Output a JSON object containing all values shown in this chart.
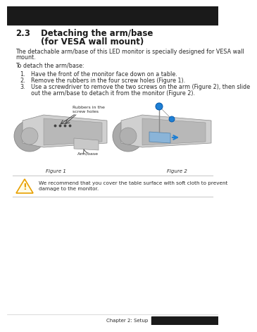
{
  "bg_color": "#ffffff",
  "header_bar_color": "#1a1a1a",
  "section_num": "2.3",
  "section_title_line1": "Detaching the arm/base",
  "section_title_line2": "(for VESA wall mount)",
  "body_text_1a": "The detachable arm/base of this LED monitor is specially designed for VESA wall",
  "body_text_1b": "mount.",
  "body_text_2": "To detach the arm/base:",
  "step1": "Have the front of the monitor face down on a table.",
  "step2": "Remove the rubbers in the four screw holes (Figure 1).",
  "step3a": "Use a screwdriver to remove the two screws on the arm (Figure 2), then slide",
  "step3b": "out the arm/base to detach it from the monitor (Figure 2).",
  "fig1_label": "Figure 1",
  "fig2_label": "Figure 2",
  "fig1_sublabel": "Arm/base",
  "fig1_callout_line1": "Rubbers in the",
  "fig1_callout_line2": "screw holes",
  "warning_text_line1": "We recommend that you cover the table surface with soft cloth to prevent",
  "warning_text_line2": "damage to the monitor.",
  "footer_text": "Chapter 2: Setup",
  "footer_bg": "#1a1a1a",
  "text_color": "#2a2a2a",
  "title_color": "#1a1a1a",
  "blue_color": "#1e7fd4",
  "warning_triangle_color": "#e8a000",
  "line_color": "#cccccc",
  "fig_gray_dark": "#888888",
  "fig_gray_mid": "#aaaaaa",
  "fig_gray_light": "#d0d0d0",
  "fig_gray_body": "#c8c8c8"
}
